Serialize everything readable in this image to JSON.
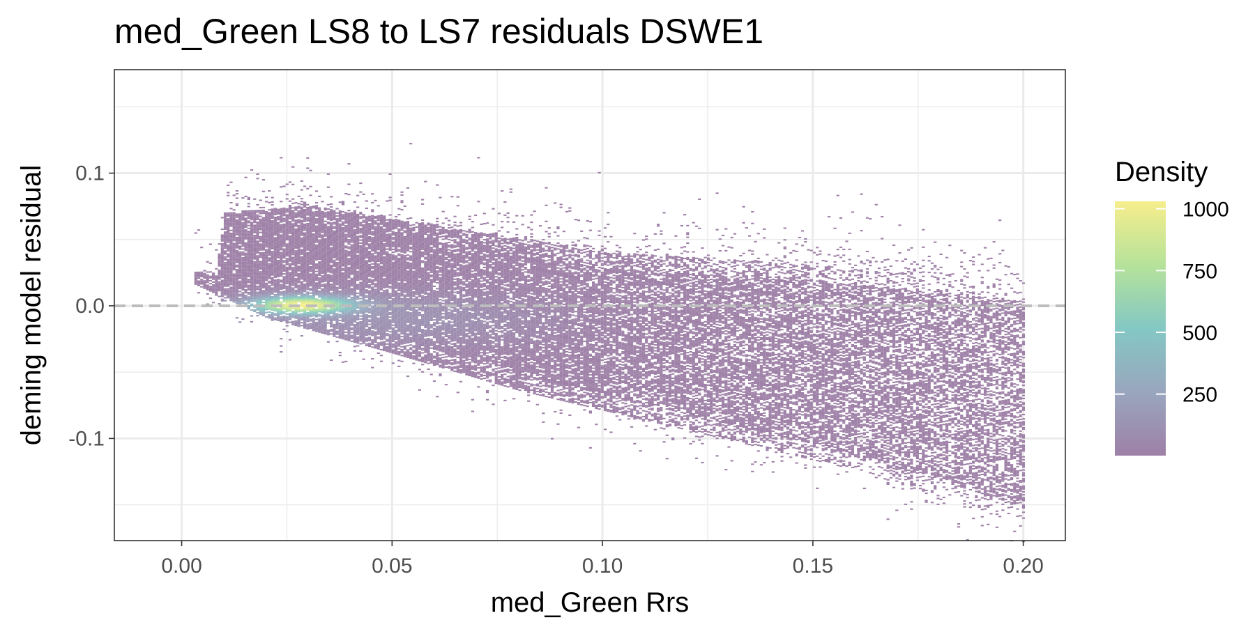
{
  "chart_data": {
    "type": "heatmap",
    "title": "med_Green LS8 to LS7 residuals DSWE1",
    "xlabel": "med_Green Rrs",
    "ylabel": "deming model residual",
    "xlim": [
      -0.016,
      0.21
    ],
    "ylim": [
      -0.177,
      0.178
    ],
    "x_ticks": [
      0.0,
      0.05,
      0.1,
      0.15,
      0.2
    ],
    "x_tick_labels": [
      "0.00",
      "0.05",
      "0.10",
      "0.15",
      "0.20"
    ],
    "y_ticks": [
      0.1,
      0.0,
      -0.1
    ],
    "y_tick_labels": [
      "0.1",
      "0.0",
      "-0.1"
    ],
    "reference_line": {
      "y": 0.0,
      "style": "dashed",
      "color": "#bdbdbd"
    },
    "grid": true,
    "legend": {
      "title": "Density",
      "position": "right",
      "ticks": [
        1000,
        750,
        500,
        250
      ],
      "tick_labels": [
        "1000",
        "750",
        "500",
        "250"
      ],
      "range": [
        1,
        1030
      ],
      "colors": [
        "#9e80a7",
        "#99a6be",
        "#84c8c4",
        "#b6e29a",
        "#f6ee8c"
      ]
    },
    "density_model": {
      "description": "2D binned density of residuals vs med_Green Rrs",
      "peak": {
        "x": 0.028,
        "y": 0.0,
        "density": 1000
      },
      "upper_edge": [
        [
          0.008,
          0.025
        ],
        [
          0.01,
          0.07
        ],
        [
          0.03,
          0.075
        ],
        [
          0.06,
          0.06
        ],
        [
          0.1,
          0.04
        ],
        [
          0.15,
          0.03
        ],
        [
          0.2,
          0.015
        ]
      ],
      "lower_edge": [
        [
          0.003,
          0.015
        ],
        [
          0.02,
          -0.01
        ],
        [
          0.05,
          -0.037
        ],
        [
          0.08,
          -0.065
        ],
        [
          0.12,
          -0.095
        ],
        [
          0.16,
          -0.125
        ],
        [
          0.2,
          -0.165
        ]
      ]
    }
  }
}
